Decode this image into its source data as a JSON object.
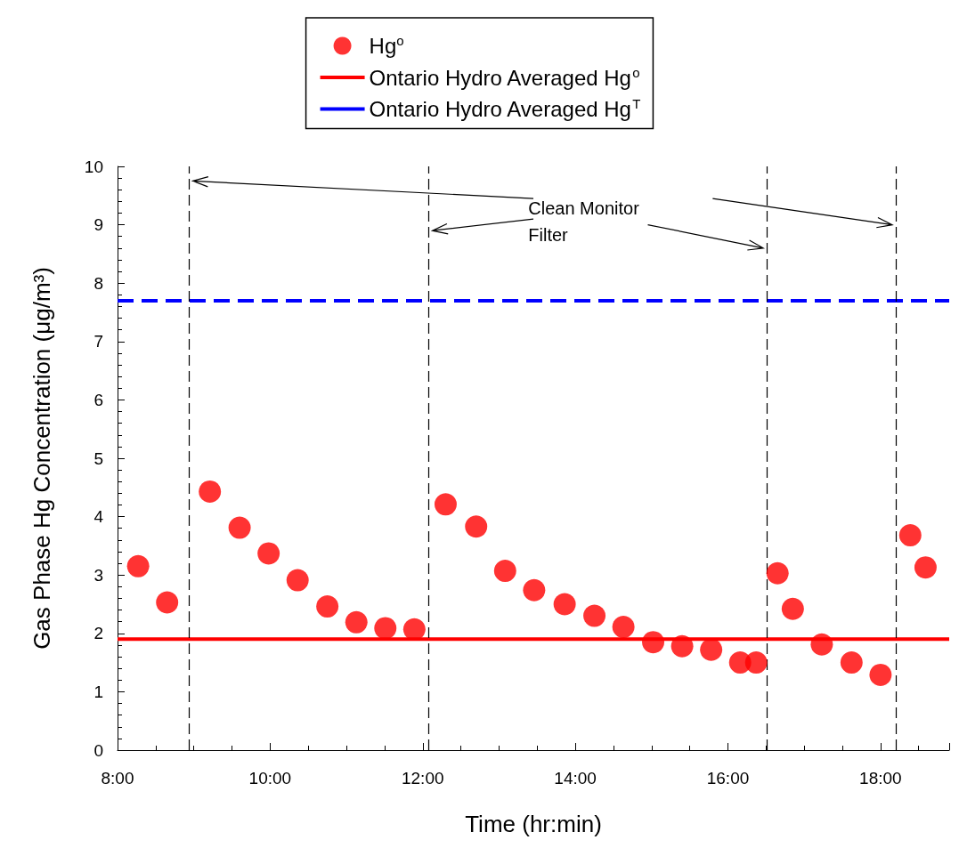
{
  "chart_data": {
    "type": "scatter",
    "xlabel": "Time (hr:min)",
    "ylabel": "Gas Phase Hg Concentration (μg/m³)",
    "x": [
      8.27,
      8.65,
      9.21,
      9.6,
      9.98,
      10.36,
      10.75,
      11.13,
      11.51,
      11.89,
      12.3,
      12.7,
      13.08,
      13.46,
      13.86,
      14.25,
      14.63,
      15.02,
      15.4,
      15.78,
      16.16,
      16.37,
      16.65,
      16.85,
      17.23,
      17.62,
      18.0,
      18.39,
      18.59
    ],
    "series": [
      {
        "name": "Hg$^{o}$",
        "color": "#ff0000",
        "marker": "circle",
        "values": [
          3.15,
          2.53,
          4.43,
          3.81,
          3.37,
          2.91,
          2.46,
          2.19,
          2.09,
          2.07,
          4.21,
          3.83,
          3.07,
          2.74,
          2.5,
          2.3,
          2.11,
          1.85,
          1.78,
          1.72,
          1.5,
          1.5,
          3.03,
          2.42,
          1.81,
          1.5,
          1.29,
          3.68,
          3.13
        ]
      }
    ],
    "ref_lines": [
      {
        "axis": "y",
        "value": 1.9,
        "label": "Ontario Hydro Averaged Hg$^{o}$",
        "color": "#ff0000",
        "line_style": "solid"
      },
      {
        "axis": "y",
        "value": 7.7,
        "label": "Ontario Hydro Averaged Hg$^{T}$",
        "color": "#0000ff",
        "line_style": "dashed"
      },
      {
        "axis": "x",
        "value": 8.94,
        "color": "#000000",
        "line_style": "dashed"
      },
      {
        "axis": "x",
        "value": 12.08,
        "color": "#000000",
        "line_style": "dashed"
      },
      {
        "axis": "x",
        "value": 16.51,
        "color": "#000000",
        "line_style": "dashed"
      },
      {
        "axis": "x",
        "value": 18.2,
        "color": "#000000",
        "line_style": "dashed"
      }
    ],
    "annotations": [
      "Clean Monitor\nFilter"
    ],
    "xlim": [
      8,
      18.9
    ],
    "xticks": [
      {
        "value": 8,
        "label": "8:00"
      },
      {
        "value": 10,
        "label": "10:00"
      },
      {
        "value": 12,
        "label": "12:00"
      },
      {
        "value": 14,
        "label": "14:00"
      },
      {
        "value": 16,
        "label": "16:00"
      },
      {
        "value": 18,
        "label": "18:00"
      }
    ],
    "ylim": [
      0,
      10
    ],
    "yticks": [
      0,
      1,
      2,
      3,
      4,
      5,
      6,
      7,
      8,
      9,
      10
    ],
    "grid": false,
    "legend": "top"
  }
}
